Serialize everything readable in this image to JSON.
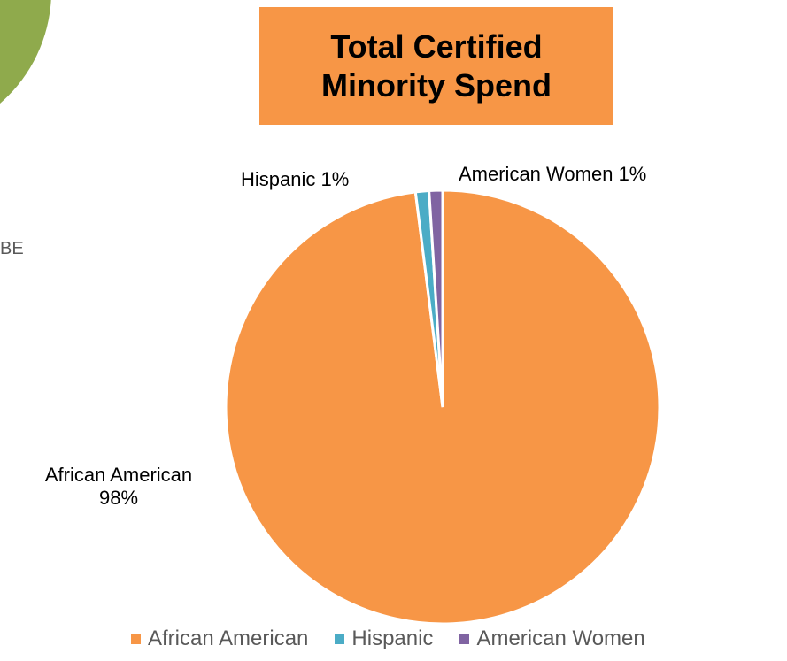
{
  "side_text": "BE",
  "colors": {
    "accent_green": "#8faa4c",
    "title_background": "#f79646"
  },
  "chart_data": {
    "type": "pie",
    "title": "Total Certified Minority Spend",
    "categories": [
      "African American",
      "Hispanic",
      "American Women"
    ],
    "values": [
      98,
      1,
      1
    ],
    "colors": [
      "#f79646",
      "#4bacc6",
      "#8064a2"
    ],
    "data_labels": [
      {
        "name": "African American",
        "value": "98%"
      },
      {
        "name": "Hispanic",
        "value": "1%"
      },
      {
        "name": "American Women",
        "value": "1%"
      }
    ],
    "legend_position": "bottom",
    "legend": [
      "African American",
      "Hispanic",
      "American Women"
    ]
  }
}
